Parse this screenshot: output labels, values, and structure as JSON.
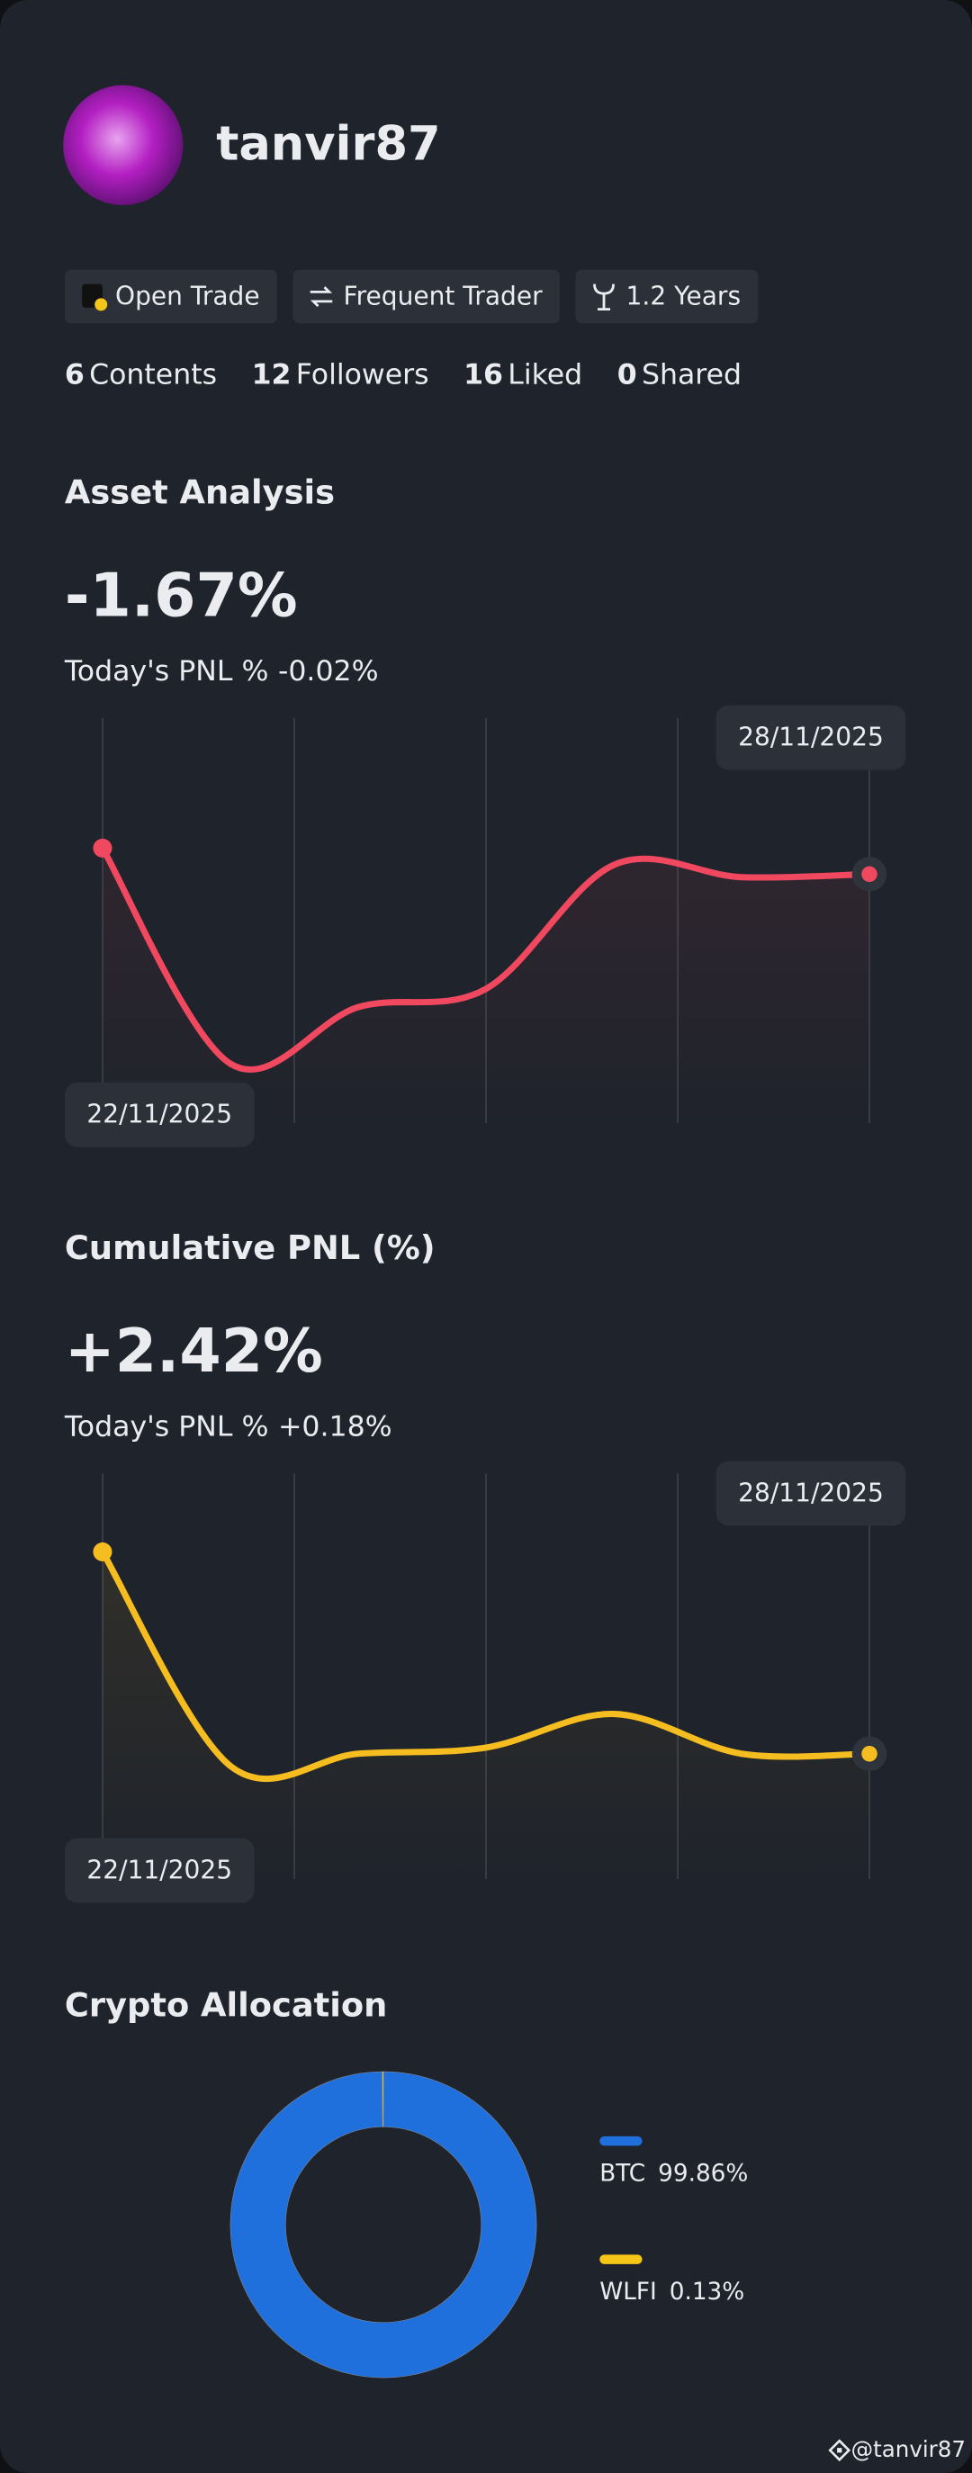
{
  "profile": {
    "username": "tanvir87",
    "badges": [
      "Open Trade",
      "Frequent Trader",
      "1.2 Years"
    ],
    "stats": [
      {
        "value": 6,
        "label": "Contents"
      },
      {
        "value": 12,
        "label": "Followers"
      },
      {
        "value": 16,
        "label": "Liked"
      },
      {
        "value": 0,
        "label": "Shared"
      }
    ]
  },
  "chart_data": [
    {
      "type": "line",
      "title": "Asset Analysis",
      "headline": "-1.67%",
      "today_label": "Today's PNL %",
      "today_value": "-0.02%",
      "categories": [
        "22/11/2025",
        null,
        null,
        null,
        null,
        null,
        "28/11/2025"
      ],
      "series": [
        {
          "color": "#f0485f",
          "values": [
            -1.5,
            -2.91,
            -2.54,
            -2.42,
            -1.61,
            -1.69,
            -1.67
          ]
        }
      ],
      "ylim": [
        -3.3,
        -0.7
      ]
    },
    {
      "type": "line",
      "title": "Cumulative PNL (%)",
      "headline": "+2.42%",
      "today_label": "Today's PNL %",
      "today_value": "+0.18%",
      "categories": [
        "22/11/2025",
        null,
        null,
        null,
        null,
        null,
        "28/11/2025"
      ],
      "series": [
        {
          "color": "#f5bd1f",
          "values": [
            3.74,
            2.34,
            2.42,
            2.46,
            2.68,
            2.42,
            2.42
          ]
        }
      ],
      "ylim": [
        1.6,
        4.2
      ]
    },
    {
      "type": "pie",
      "title": "Crypto Allocation",
      "categories": [
        "BTC",
        "WLFI"
      ],
      "values": [
        99.86,
        0.13
      ],
      "value_labels": [
        "99.86%",
        "0.13%"
      ],
      "colors": [
        "#1f6fdc",
        "#f5c518"
      ]
    }
  ],
  "footer": {
    "watermark": "@tanvir87"
  }
}
